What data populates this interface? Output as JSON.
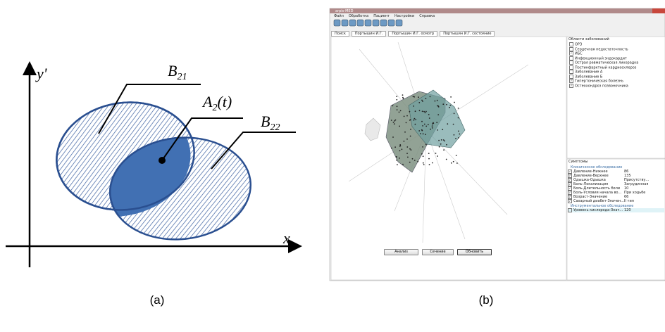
{
  "panel_a": {
    "label": "(a)",
    "y_axis": "y'",
    "x_axis": "x",
    "b21": {
      "base": "B",
      "sub": "21"
    },
    "a2": {
      "base": "A",
      "sub": "2",
      "arg": "(t)"
    },
    "b22": {
      "base": "B",
      "sub": "22"
    }
  },
  "panel_b": {
    "label": "(b)",
    "window_title": "arpis-MED",
    "menu": [
      "Файл",
      "Обработка",
      "Пациент",
      "Настройки",
      "Справка"
    ],
    "tabs": [
      "Поиск",
      "Портышин И.Г.",
      "Портышин И.Г. осмотр",
      "Портышин И.Г. состояние"
    ],
    "diseases": {
      "title": "Области заболеваний",
      "items": [
        {
          "text": "ОРЗ",
          "checked": false
        },
        {
          "text": "Сердечная недостаточность",
          "checked": false
        },
        {
          "text": "ИБС",
          "checked": true
        },
        {
          "text": "Инфекционный эндокардит",
          "checked": false
        },
        {
          "text": "Острая ревматическая лихорадка",
          "checked": false
        },
        {
          "text": "Постинфарктный кардиосклероз",
          "checked": false
        },
        {
          "text": "Заболевание А",
          "checked": false
        },
        {
          "text": "Заболевание Б",
          "checked": false
        },
        {
          "text": "Гипертоническая болезнь",
          "checked": true
        },
        {
          "text": "Остеохондроз позвоночника",
          "checked": true
        }
      ]
    },
    "symptoms": {
      "title": "Симптомы",
      "groups": [
        {
          "title": "Клиническое обследование",
          "rows": [
            [
              "Давление-Нижнее",
              "86"
            ],
            [
              "Давление-Верхнее",
              "135"
            ],
            [
              "Одышка-Одышка",
              "Присутству..."
            ],
            [
              "Боль-Локализация",
              "Загрудинная"
            ],
            [
              "Боль-Длительность боли",
              "10"
            ],
            [
              "Боль-Условия начала во...",
              "При ходьбе"
            ],
            [
              "Возраст-Значение",
              "66"
            ],
            [
              "Сахарный диабет-Значен...",
              "II тип"
            ]
          ]
        },
        {
          "title": "Инструментальное обследование",
          "rows": [
            [
              "Уровень кислорода-Знач...",
              "120"
            ]
          ]
        }
      ]
    },
    "buttons": [
      "Анализ",
      "Сечение",
      "Обновить"
    ]
  }
}
